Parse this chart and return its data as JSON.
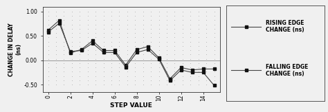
{
  "title": "",
  "xlabel": "STEP VALUE",
  "ylabel": "CHANGE IN DELAY\n(ns)",
  "ylim": [
    -0.65,
    1.1
  ],
  "yticks": [
    -0.5,
    0.0,
    0.5,
    1.0
  ],
  "xlim": [
    -0.5,
    15.5
  ],
  "xticks": [
    0,
    2,
    4,
    6,
    8,
    10,
    12,
    14
  ],
  "step_values": [
    0,
    1,
    2,
    3,
    4,
    5,
    6,
    7,
    8,
    9,
    10,
    11,
    12,
    13,
    14,
    15
  ],
  "rising_edge": [
    0.62,
    0.82,
    0.15,
    0.22,
    0.4,
    0.2,
    0.2,
    -0.1,
    0.22,
    0.28,
    0.05,
    -0.38,
    -0.15,
    -0.2,
    -0.18,
    -0.18
  ],
  "falling_edge": [
    0.58,
    0.76,
    0.18,
    0.2,
    0.35,
    0.16,
    0.16,
    -0.14,
    0.16,
    0.22,
    0.02,
    -0.42,
    -0.2,
    -0.25,
    -0.25,
    -0.52
  ],
  "line_color": "#444444",
  "marker_color": "#111111",
  "bg_color": "#f0f0f0",
  "legend_labels": [
    "RISING EDGE\nCHANGE (ns)",
    "FALLING EDGE\nCHANGE (ns)"
  ],
  "ylabel_fontsize": 5.5,
  "xlabel_fontsize": 6.5,
  "tick_fontsize": 5.5,
  "legend_fontsize": 5.5
}
